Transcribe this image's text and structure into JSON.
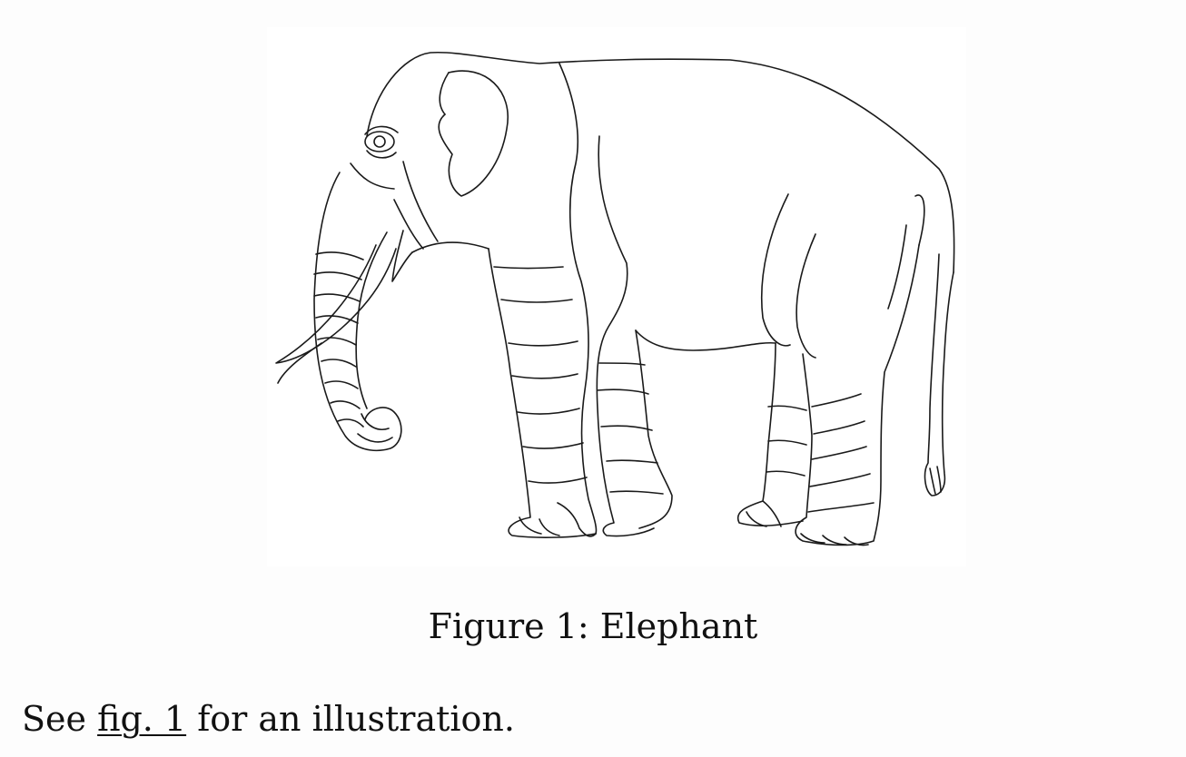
{
  "figure": {
    "image_icon": "elephant-line-drawing",
    "caption": "Figure 1: Elephant"
  },
  "paragraph": {
    "prefix": "See ",
    "link_text": "fig. 1",
    "suffix": " for an illustration."
  }
}
